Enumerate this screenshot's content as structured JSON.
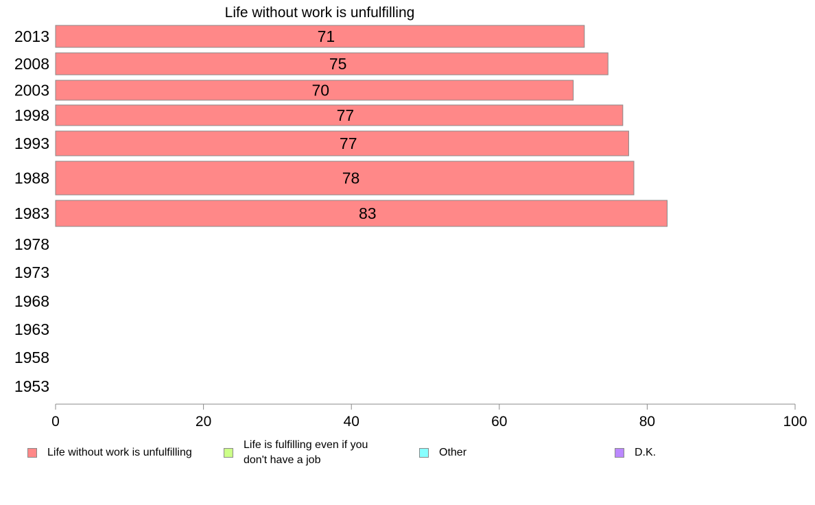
{
  "chart_data": {
    "type": "bar",
    "orientation": "horizontal",
    "title": "Life without work is unfulfilling",
    "xlabel": "",
    "ylabel": "",
    "xlim": [
      0,
      100
    ],
    "x_ticks": [
      "0",
      "20",
      "40",
      "60",
      "80",
      "100"
    ],
    "categories": [
      "2013",
      "2008",
      "2003",
      "1998",
      "1993",
      "1988",
      "1983",
      "1978",
      "1973",
      "1968",
      "1963",
      "1958",
      "1953"
    ],
    "series": [
      {
        "name": "Life without work is unfulfilling",
        "color": "#ff8888",
        "values": [
          71.5,
          74.7,
          70,
          76.7,
          77.5,
          78.2,
          82.7,
          null,
          null,
          null,
          null,
          null,
          null
        ],
        "labels": [
          "71",
          "75",
          "70",
          "77",
          "77",
          "78",
          "83",
          "",
          "",
          "",
          "",
          "",
          ""
        ]
      }
    ],
    "grid": false,
    "legend_position": "bottom",
    "legend": [
      {
        "label": "Life without work is unfulfilling",
        "color": "#ff8888"
      },
      {
        "label": "Life is fulfilling even if you don't have a job",
        "color": "#ccff88"
      },
      {
        "label": "Other",
        "color": "#88ffff"
      },
      {
        "label": "D.K.",
        "color": "#bb88ff"
      }
    ]
  }
}
